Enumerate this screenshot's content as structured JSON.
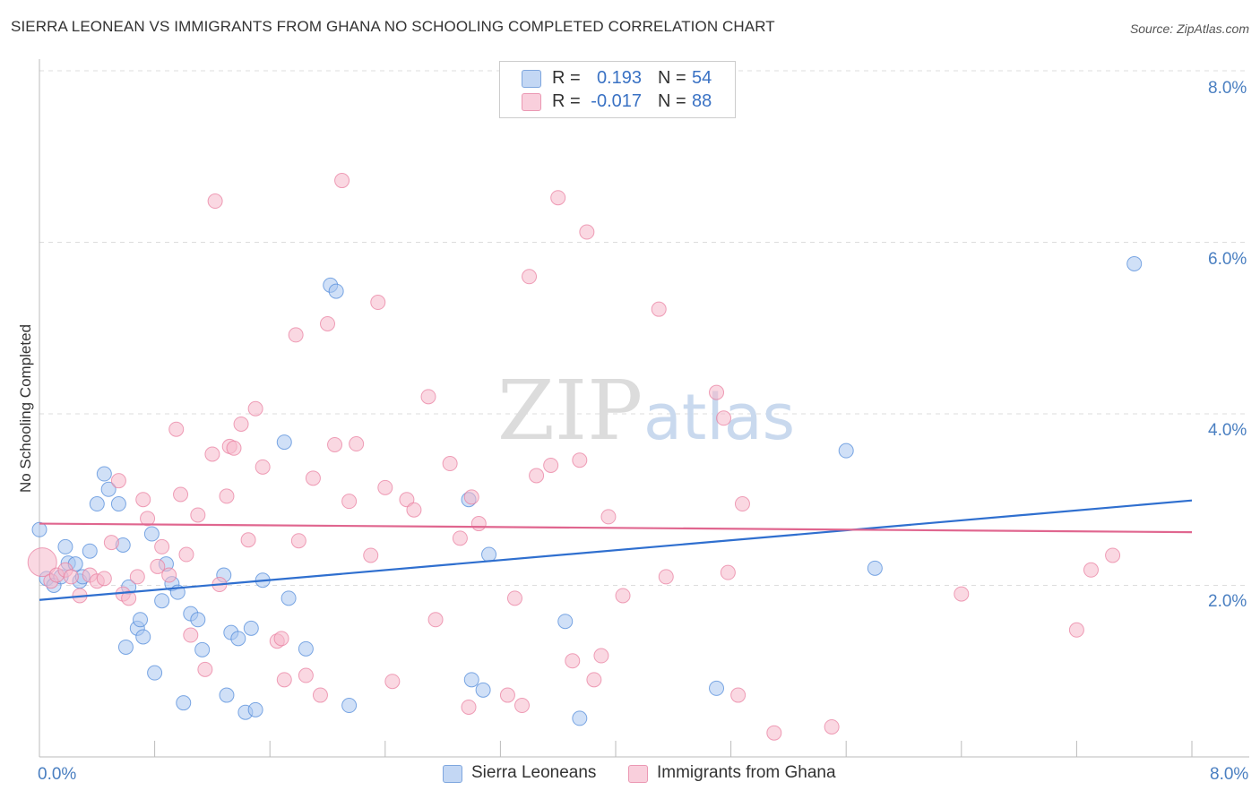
{
  "title": "SIERRA LEONEAN VS IMMIGRANTS FROM GHANA NO SCHOOLING COMPLETED CORRELATION CHART",
  "source": "Source: ZipAtlas.com",
  "watermark": {
    "zip": "ZIP",
    "atlas": "atlas"
  },
  "legend": {
    "rows": [
      {
        "r_label": "R =",
        "r_value": "0.193",
        "n_label": "N =",
        "n_value": "54",
        "color": "#a9c6f0"
      },
      {
        "r_label": "R =",
        "r_value": "-0.017",
        "n_label": "N =",
        "n_value": "88",
        "color": "#f5b8cb"
      }
    ]
  },
  "bottom_legend": {
    "items": [
      {
        "label": "Sierra Leoneans",
        "color": "#a9c6f0"
      },
      {
        "label": "Immigrants from Ghana",
        "color": "#f5b8cb"
      }
    ]
  },
  "chart_data": {
    "type": "scatter",
    "title": "SIERRA LEONEAN VS IMMIGRANTS FROM GHANA NO SCHOOLING COMPLETED CORRELATION CHART",
    "ylabel": "No Schooling Completed",
    "xlim": [
      0,
      8
    ],
    "ylim": [
      0,
      8
    ],
    "x_tick_labels": [
      "0.0%",
      "8.0%"
    ],
    "y_tick_labels": [
      "2.0%",
      "4.0%",
      "6.0%",
      "8.0%"
    ],
    "y_ticks": [
      2,
      4,
      6,
      8
    ],
    "grid": true,
    "series": [
      {
        "name": "Sierra Leoneans",
        "color": "#4a86d8",
        "fill": "#a9c6f0",
        "trend": [
          [
            0,
            1.83
          ],
          [
            8,
            2.99
          ]
        ],
        "trend_color": "#2f6fcf",
        "points": [
          [
            0.05,
            2.08
          ],
          [
            0.1,
            2.0
          ],
          [
            0.15,
            2.1
          ],
          [
            0.18,
            2.45
          ],
          [
            0.2,
            2.26
          ],
          [
            0.25,
            2.25
          ],
          [
            0.28,
            2.05
          ],
          [
            0.3,
            2.1
          ],
          [
            0.35,
            2.4
          ],
          [
            0.4,
            2.95
          ],
          [
            0.45,
            3.3
          ],
          [
            0.48,
            3.12
          ],
          [
            0.55,
            2.95
          ],
          [
            0.58,
            2.47
          ],
          [
            0.62,
            1.98
          ],
          [
            0.68,
            1.5
          ],
          [
            0.7,
            1.6
          ],
          [
            0.72,
            1.4
          ],
          [
            0.78,
            2.6
          ],
          [
            0.8,
            0.98
          ],
          [
            0.85,
            1.82
          ],
          [
            0.88,
            2.25
          ],
          [
            0.92,
            2.02
          ],
          [
            0.96,
            1.92
          ],
          [
            1.0,
            0.63
          ],
          [
            1.05,
            1.67
          ],
          [
            1.1,
            1.6
          ],
          [
            1.13,
            1.25
          ],
          [
            1.28,
            2.12
          ],
          [
            1.3,
            0.72
          ],
          [
            1.33,
            1.45
          ],
          [
            1.38,
            1.38
          ],
          [
            1.43,
            0.52
          ],
          [
            1.47,
            1.5
          ],
          [
            1.5,
            0.55
          ],
          [
            1.55,
            2.06
          ],
          [
            1.7,
            3.67
          ],
          [
            1.73,
            1.85
          ],
          [
            1.85,
            1.26
          ],
          [
            2.02,
            5.5
          ],
          [
            2.06,
            5.43
          ],
          [
            2.15,
            0.6
          ],
          [
            2.98,
            3.0
          ],
          [
            3.0,
            0.9
          ],
          [
            3.08,
            0.78
          ],
          [
            3.12,
            2.36
          ],
          [
            3.65,
            1.58
          ],
          [
            3.75,
            0.45
          ],
          [
            4.7,
            0.8
          ],
          [
            5.6,
            3.57
          ],
          [
            5.8,
            2.2
          ],
          [
            7.6,
            5.75
          ],
          [
            0.0,
            2.65
          ],
          [
            0.6,
            1.28
          ]
        ],
        "sizes": {
          "0.0,2.65": 16
        }
      },
      {
        "name": "Immigrants from Ghana",
        "color": "#e87a9c",
        "fill": "#f5b8cb",
        "trend": [
          [
            0,
            2.72
          ],
          [
            8,
            2.62
          ]
        ],
        "trend_color": "#e0668f",
        "points": [
          [
            0.02,
            2.27
          ],
          [
            0.08,
            2.05
          ],
          [
            0.12,
            2.12
          ],
          [
            0.18,
            2.18
          ],
          [
            0.22,
            2.1
          ],
          [
            0.28,
            1.88
          ],
          [
            0.35,
            2.12
          ],
          [
            0.4,
            2.05
          ],
          [
            0.45,
            2.08
          ],
          [
            0.5,
            2.5
          ],
          [
            0.55,
            3.22
          ],
          [
            0.58,
            1.9
          ],
          [
            0.62,
            1.85
          ],
          [
            0.68,
            2.1
          ],
          [
            0.72,
            3.0
          ],
          [
            0.75,
            2.78
          ],
          [
            0.82,
            2.22
          ],
          [
            0.85,
            2.45
          ],
          [
            0.9,
            2.12
          ],
          [
            0.95,
            3.82
          ],
          [
            0.98,
            3.06
          ],
          [
            1.02,
            2.36
          ],
          [
            1.05,
            1.42
          ],
          [
            1.1,
            2.82
          ],
          [
            1.15,
            1.02
          ],
          [
            1.2,
            3.53
          ],
          [
            1.22,
            6.48
          ],
          [
            1.25,
            2.01
          ],
          [
            1.3,
            3.04
          ],
          [
            1.32,
            3.62
          ],
          [
            1.35,
            3.6
          ],
          [
            1.4,
            3.88
          ],
          [
            1.45,
            2.53
          ],
          [
            1.5,
            4.06
          ],
          [
            1.55,
            3.38
          ],
          [
            1.65,
            1.35
          ],
          [
            1.68,
            1.38
          ],
          [
            1.7,
            0.9
          ],
          [
            1.78,
            4.92
          ],
          [
            1.8,
            2.52
          ],
          [
            1.85,
            0.95
          ],
          [
            1.9,
            3.25
          ],
          [
            1.95,
            0.72
          ],
          [
            2.0,
            5.05
          ],
          [
            2.05,
            3.64
          ],
          [
            2.1,
            6.72
          ],
          [
            2.15,
            2.98
          ],
          [
            2.2,
            3.65
          ],
          [
            2.3,
            2.35
          ],
          [
            2.35,
            5.3
          ],
          [
            2.4,
            3.14
          ],
          [
            2.45,
            0.88
          ],
          [
            2.55,
            3.0
          ],
          [
            2.6,
            2.88
          ],
          [
            2.7,
            4.2
          ],
          [
            2.75,
            1.6
          ],
          [
            2.85,
            3.42
          ],
          [
            2.92,
            2.55
          ],
          [
            2.98,
            0.58
          ],
          [
            3.0,
            3.03
          ],
          [
            3.05,
            2.72
          ],
          [
            3.25,
            0.72
          ],
          [
            3.3,
            1.85
          ],
          [
            3.35,
            0.6
          ],
          [
            3.4,
            5.6
          ],
          [
            3.45,
            3.28
          ],
          [
            3.55,
            3.4
          ],
          [
            3.6,
            6.52
          ],
          [
            3.7,
            1.12
          ],
          [
            3.75,
            3.46
          ],
          [
            3.8,
            6.12
          ],
          [
            3.85,
            0.9
          ],
          [
            3.9,
            1.18
          ],
          [
            3.95,
            2.8
          ],
          [
            4.05,
            1.88
          ],
          [
            4.3,
            5.22
          ],
          [
            4.35,
            2.1
          ],
          [
            4.7,
            4.25
          ],
          [
            4.75,
            3.95
          ],
          [
            4.78,
            2.15
          ],
          [
            4.85,
            0.72
          ],
          [
            4.88,
            2.95
          ],
          [
            5.1,
            0.28
          ],
          [
            5.5,
            0.35
          ],
          [
            6.4,
            1.9
          ],
          [
            7.2,
            1.48
          ],
          [
            7.3,
            2.18
          ],
          [
            7.45,
            2.35
          ]
        ],
        "sizes": {
          "0.02,2.27": 16
        }
      }
    ]
  }
}
